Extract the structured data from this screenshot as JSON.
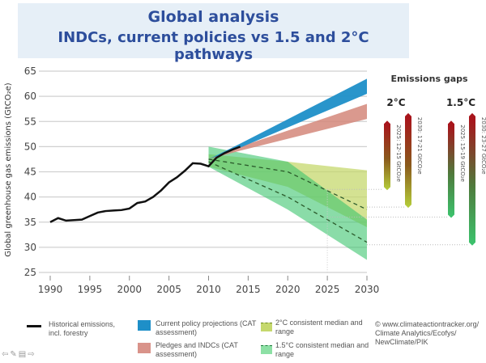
{
  "title": {
    "line1": "Global analysis",
    "line2": "INDCs, current policies vs 1.5 and 2°C pathways"
  },
  "chart_data": {
    "type": "area",
    "ylabel": "Global greenhouse gas emissions (GtCO₂e)",
    "xlim": [
      1990,
      2030
    ],
    "ylim": [
      25,
      65
    ],
    "xticks": [
      1990,
      1995,
      2000,
      2005,
      2010,
      2015,
      2020,
      2025,
      2030
    ],
    "yticks": [
      25,
      30,
      35,
      40,
      45,
      50,
      55,
      60,
      65
    ],
    "grid": "horizontal",
    "historical": {
      "x": [
        1990,
        1991,
        1992,
        1993,
        1994,
        1995,
        1996,
        1997,
        1998,
        1999,
        2000,
        2001,
        2002,
        2003,
        2004,
        2005,
        2006,
        2007,
        2008,
        2009,
        2010,
        2011,
        2012,
        2013,
        2014
      ],
      "y": [
        35.0,
        35.8,
        35.3,
        35.4,
        35.5,
        36.2,
        36.9,
        37.2,
        37.3,
        37.4,
        37.7,
        38.8,
        39.1,
        40.0,
        41.3,
        42.9,
        43.9,
        45.2,
        46.7,
        46.6,
        46.1,
        47.8,
        48.7,
        49.4,
        50.0
      ]
    },
    "bands": [
      {
        "name": "current_policy",
        "color": "#1e8fc8",
        "x": [
          2010,
          2014,
          2030
        ],
        "lower": [
          47.5,
          49.8,
          60.5
        ],
        "upper": [
          47.5,
          50.6,
          63.5
        ]
      },
      {
        "name": "pledges_indcs",
        "color": "#d4877a",
        "x": [
          2010,
          2014,
          2030
        ],
        "lower": [
          47.5,
          49.2,
          55.5
        ],
        "upper": [
          47.5,
          50.0,
          58.5
        ]
      },
      {
        "name": "2c_range",
        "color": "#c5d86d",
        "x": [
          2010,
          2020,
          2030
        ],
        "lower": [
          46.0,
          42.0,
          34.0
        ],
        "upper": [
          48.5,
          47.0,
          45.3
        ]
      },
      {
        "name": "1_5c_range",
        "color": "#3cc46e",
        "x": [
          2010,
          2020,
          2030
        ],
        "lower": [
          46.0,
          37.5,
          27.5
        ],
        "upper": [
          50.0,
          47.0,
          35.5
        ]
      }
    ],
    "medians": [
      {
        "name": "2c_median",
        "x": [
          2010,
          2020,
          2030
        ],
        "y": [
          47.5,
          45.0,
          37.5
        ]
      },
      {
        "name": "1_5c_median",
        "x": [
          2010,
          2020,
          2030
        ],
        "y": [
          47.0,
          40.0,
          31.0
        ]
      }
    ],
    "gaps": {
      "title": "Emissions gaps",
      "groups": [
        {
          "label": "2°C",
          "bars": [
            {
              "label": "2025: 12-15 GtCO₂e",
              "top": 55.0,
              "bottom": 41.5,
              "bottom_color": "#b5cf3a"
            },
            {
              "label": "2030: 17-21 GtCO₂e",
              "top": 56.5,
              "bottom": 38.0,
              "bottom_color": "#b5cf3a"
            }
          ]
        },
        {
          "label": "1.5°C",
          "bars": [
            {
              "label": "2025: 15-19 GtCO₂e",
              "top": 55.0,
              "bottom": 36.0,
              "bottom_color": "#3cc46e"
            },
            {
              "label": "2030: 23-27 GtCO₂e",
              "top": 56.5,
              "bottom": 30.5,
              "bottom_color": "#3cc46e"
            }
          ]
        }
      ]
    }
  },
  "legend": {
    "historical": "Historical emissions, incl. forestry",
    "current_policy": "Current policy projections (CAT assessment)",
    "pledges": "Pledges and INDCs (CAT assessment)",
    "two_c": "2°C consistent median and range",
    "one_five_c": "1.5°C consistent median and range"
  },
  "source": "© www.climateactiontracker.org/ Climate Analytics/Ecofys/ NewClimate/PIK",
  "nav": {
    "prev": "⇦",
    "edit": "✎",
    "slide": "▤",
    "next": "⇨"
  }
}
